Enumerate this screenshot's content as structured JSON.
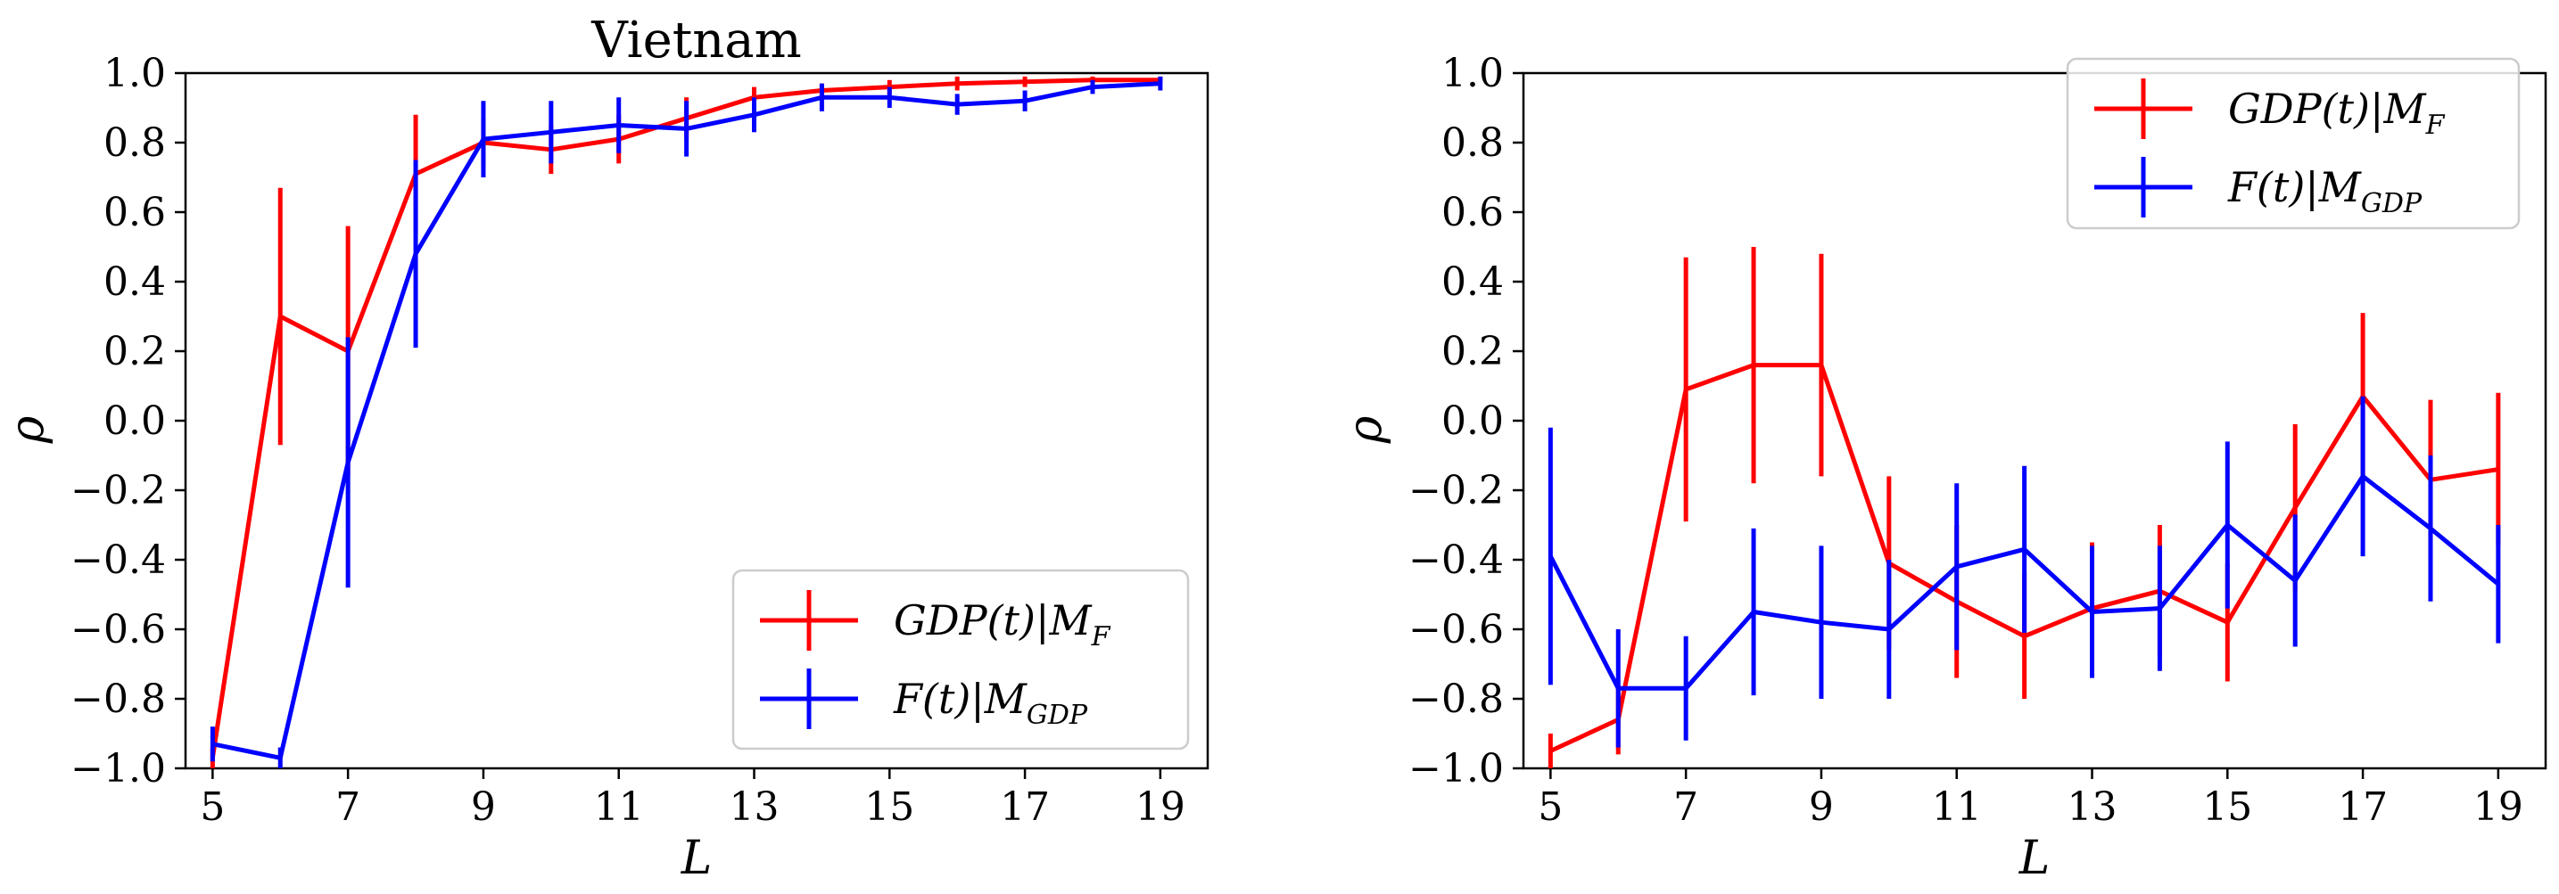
{
  "chart_data": [
    {
      "type": "line",
      "title": "Vietnam",
      "xlabel": "L",
      "ylabel": "ρ",
      "xlim": [
        4.6,
        19.7
      ],
      "ylim": [
        -1.0,
        1.0
      ],
      "xticks": [
        5,
        7,
        9,
        11,
        13,
        15,
        17,
        19
      ],
      "xtick_labels": [
        "5",
        "7",
        "9",
        "11",
        "13",
        "15",
        "17",
        "19"
      ],
      "yticks": [
        -1.0,
        -0.8,
        -0.6,
        -0.4,
        -0.2,
        0.0,
        0.2,
        0.4,
        0.6,
        0.8,
        1.0
      ],
      "ytick_labels": [
        "−1.0",
        "−0.8",
        "−0.6",
        "−0.4",
        "−0.2",
        "0.0",
        "0.2",
        "0.4",
        "0.6",
        "0.8",
        "1.0"
      ],
      "legend_position": "lower-right",
      "x": [
        5,
        6,
        7,
        8,
        9,
        10,
        11,
        12,
        13,
        14,
        15,
        16,
        17,
        18,
        19
      ],
      "series": [
        {
          "name": "GDP(t)|M_F",
          "label_main": "GDP(t)|M",
          "label_sub": "F",
          "color": "#ff0000",
          "values": [
            -0.97,
            0.3,
            0.2,
            0.71,
            0.8,
            0.78,
            0.81,
            0.87,
            0.93,
            0.95,
            0.96,
            0.97,
            0.975,
            0.98,
            0.98
          ],
          "errors": [
            0.03,
            0.37,
            0.36,
            0.17,
            0.07,
            0.07,
            0.07,
            0.06,
            0.03,
            0.02,
            0.02,
            0.02,
            0.015,
            0.01,
            0.01
          ]
        },
        {
          "name": "F(t)|M_GDP",
          "label_main": "F(t)|M",
          "label_sub": "GDP",
          "color": "#0000ff",
          "values": [
            -0.93,
            -0.97,
            -0.12,
            0.48,
            0.81,
            0.83,
            0.85,
            0.84,
            0.88,
            0.93,
            0.93,
            0.91,
            0.92,
            0.96,
            0.97
          ],
          "errors": [
            0.05,
            0.03,
            0.36,
            0.27,
            0.11,
            0.09,
            0.08,
            0.08,
            0.05,
            0.04,
            0.03,
            0.03,
            0.03,
            0.02,
            0.02
          ]
        }
      ]
    },
    {
      "type": "line",
      "title": "",
      "xlabel": "L",
      "ylabel": "ρ",
      "xlim": [
        4.6,
        19.7
      ],
      "ylim": [
        -1.0,
        1.0
      ],
      "xticks": [
        5,
        7,
        9,
        11,
        13,
        15,
        17,
        19
      ],
      "xtick_labels": [
        "5",
        "7",
        "9",
        "11",
        "13",
        "15",
        "17",
        "19"
      ],
      "yticks": [
        -1.0,
        -0.8,
        -0.6,
        -0.4,
        -0.2,
        0.0,
        0.2,
        0.4,
        0.6,
        0.8,
        1.0
      ],
      "ytick_labels": [
        "−1.0",
        "−0.8",
        "−0.6",
        "−0.4",
        "−0.2",
        "0.0",
        "0.2",
        "0.4",
        "0.6",
        "0.8",
        "1.0"
      ],
      "legend_position": "upper-right",
      "x": [
        5,
        6,
        7,
        8,
        9,
        10,
        11,
        12,
        13,
        14,
        15,
        16,
        17,
        18,
        19
      ],
      "series": [
        {
          "name": "GDP(t)|M_F",
          "label_main": "GDP(t)|M",
          "label_sub": "F",
          "color": "#ff0000",
          "values": [
            -0.95,
            -0.86,
            0.09,
            0.16,
            0.16,
            -0.41,
            -0.52,
            -0.62,
            -0.54,
            -0.49,
            -0.58,
            -0.25,
            0.07,
            -0.17,
            -0.14
          ],
          "errors": [
            0.05,
            0.1,
            0.38,
            0.34,
            0.32,
            0.25,
            0.22,
            0.18,
            0.19,
            0.19,
            0.17,
            0.24,
            0.24,
            0.23,
            0.22
          ]
        },
        {
          "name": "F(t)|M_GDP",
          "label_main": "F(t)|M",
          "label_sub": "GDP",
          "color": "#0000ff",
          "values": [
            -0.39,
            -0.77,
            -0.77,
            -0.55,
            -0.58,
            -0.6,
            -0.42,
            -0.37,
            -0.55,
            -0.54,
            -0.3,
            -0.46,
            -0.16,
            -0.31,
            -0.47
          ],
          "errors": [
            0.37,
            0.17,
            0.15,
            0.24,
            0.22,
            0.2,
            0.24,
            0.24,
            0.19,
            0.18,
            0.24,
            0.19,
            0.23,
            0.21,
            0.17
          ]
        }
      ]
    }
  ]
}
